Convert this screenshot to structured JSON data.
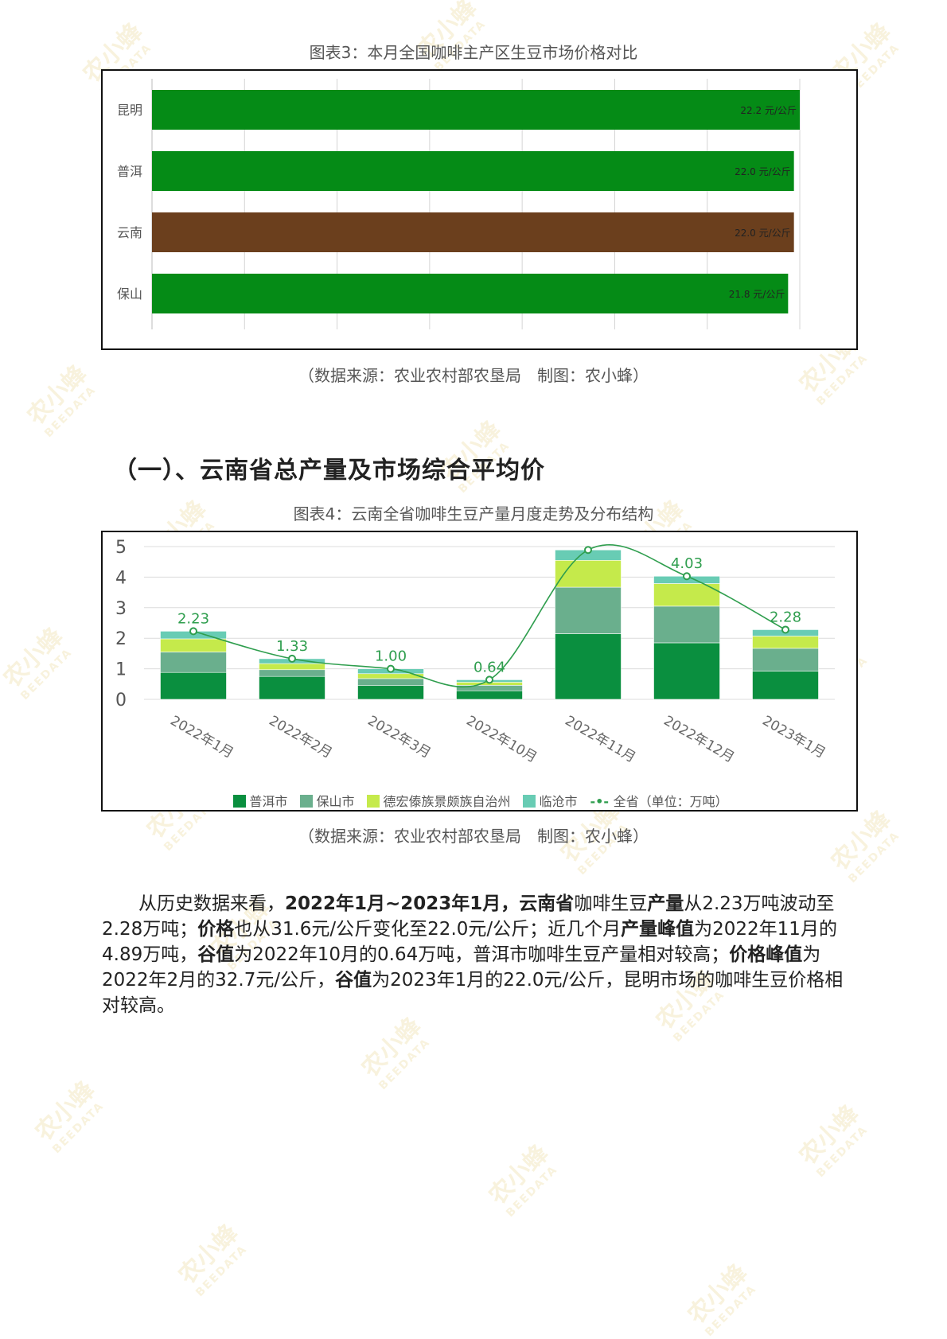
{
  "watermark": {
    "cn": "农小蜂",
    "en": "BEEDATA"
  },
  "figure3": {
    "caption": "图表3：本月全国咖啡主产区生豆市场价格对比",
    "source": "（数据来源：农业农村部农垦局　制图：农小蜂）",
    "chart_data": {
      "type": "bar",
      "orientation": "horizontal",
      "categories": [
        "昆明",
        "普洱",
        "云南",
        "保山"
      ],
      "values": [
        22.2,
        22.0,
        22.0,
        21.8
      ],
      "labels": [
        "22.2 元/公斤",
        "22.0 元/公斤",
        "22.0 元/公斤",
        "21.8 元/公斤"
      ],
      "colors": [
        "#058b16",
        "#058b16",
        "#6b3f1d",
        "#058b16"
      ],
      "xlim": [
        0,
        22.2
      ],
      "grid": true
    }
  },
  "section": {
    "title": "（一）、云南省总产量及市场综合平均价"
  },
  "figure4": {
    "caption": "图表4：云南全省咖啡生豆产量月度走势及分布结构",
    "source": "（数据来源：农业农村部农垦局　制图：农小蜂）",
    "chart_data": {
      "type": "bar",
      "stacked": true,
      "categories": [
        "2022年1月",
        "2022年2月",
        "2022年3月",
        "2022年10月",
        "2022年11月",
        "2022年12月",
        "2023年1月"
      ],
      "series": [
        {
          "name": "普洱市",
          "color": "#0a8f3f",
          "values": [
            0.88,
            0.75,
            0.45,
            0.28,
            2.15,
            1.85,
            0.92
          ]
        },
        {
          "name": "保山市",
          "color": "#6aaf8d",
          "values": [
            0.67,
            0.22,
            0.23,
            0.18,
            1.52,
            1.2,
            0.75
          ]
        },
        {
          "name": "德宏傣族景颇族自治州",
          "color": "#c5ea4b",
          "values": [
            0.43,
            0.2,
            0.16,
            0.1,
            0.88,
            0.74,
            0.4
          ]
        },
        {
          "name": "临沧市",
          "color": "#68ccb4",
          "values": [
            0.25,
            0.16,
            0.16,
            0.08,
            0.34,
            0.24,
            0.21
          ]
        }
      ],
      "line": {
        "name": "全省（单位：万吨）",
        "color": "#2f9e4e",
        "values": [
          2.23,
          1.33,
          1.0,
          0.64,
          4.89,
          4.03,
          2.28
        ]
      },
      "point_labels": [
        "2.23",
        "1.33",
        "1.00",
        "0.64",
        "",
        "4.03",
        "2.28"
      ],
      "ylim": [
        0,
        5
      ],
      "yticks": [
        "0",
        "1",
        "2",
        "3",
        "4",
        "5"
      ],
      "grid": true,
      "legend": "bottom"
    }
  },
  "paragraph": {
    "t1": "从历史数据来看，",
    "b1": "2022年1月~2023年1月，云南省",
    "t2": "咖啡生豆",
    "b2": "产量",
    "t3": "从2.23万吨波动至2.28万吨；",
    "b3": "价格",
    "t4": "也从31.6元/公斤变化至22.0元/公斤；近几个月",
    "b4": "产量峰值",
    "t5": "为2022年11月的4.89万吨，",
    "b5": "谷值",
    "t6": "为2022年10月的0.64万吨，普洱市咖啡生豆产量相对较高；",
    "b6": "价格峰值",
    "t7": "为2022年2月的32.7元/公斤，",
    "b7": "谷值",
    "t8": "为2023年1月的22.0元/公斤，昆明市场的咖啡生豆价格相对较高。"
  }
}
